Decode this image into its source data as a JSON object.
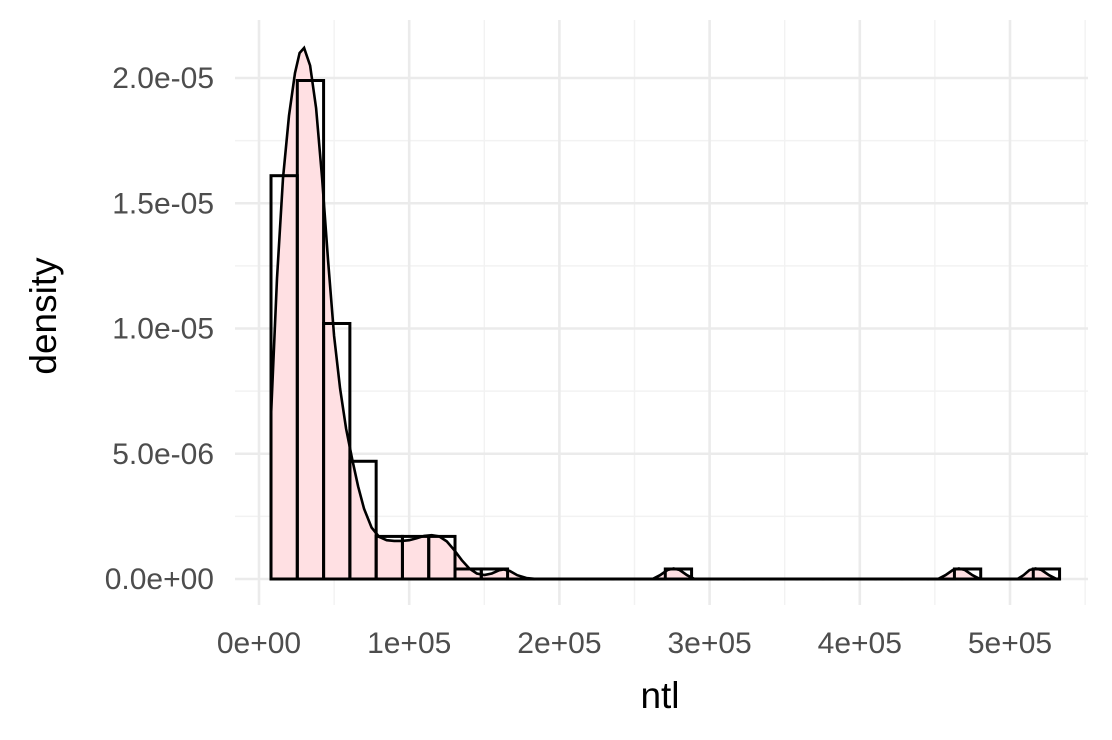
{
  "chart_data": {
    "type": "histogram",
    "xlabel": "ntl",
    "ylabel": "density",
    "title": "",
    "xlim": [
      -5000,
      545000
    ],
    "ylim": [
      -1e-06,
      2.2e-05
    ],
    "x_ticks": [
      0,
      100000,
      200000,
      300000,
      400000,
      500000
    ],
    "x_tick_labels": [
      "0e+00",
      "1e+05",
      "2e+05",
      "3e+05",
      "4e+05",
      "5e+05"
    ],
    "y_ticks": [
      0,
      5e-06,
      1e-05,
      1.5e-05,
      2e-05
    ],
    "y_tick_labels": [
      "0.0e+00",
      "5.0e-06",
      "1.0e-05",
      "1.5e-05",
      "2.0e-05"
    ],
    "grid": true,
    "histogram": {
      "bin_width": 17500,
      "bins": [
        {
          "x0": 8000,
          "x1": 25500,
          "density": 1.61e-05
        },
        {
          "x0": 25500,
          "x1": 43000,
          "density": 1.99e-05
        },
        {
          "x0": 43000,
          "x1": 60500,
          "density": 1.02e-05
        },
        {
          "x0": 60500,
          "x1": 78000,
          "density": 4.7e-06
        },
        {
          "x0": 78000,
          "x1": 95500,
          "density": 1.7e-06
        },
        {
          "x0": 95500,
          "x1": 113000,
          "density": 1.7e-06
        },
        {
          "x0": 113000,
          "x1": 130500,
          "density": 1.7e-06
        },
        {
          "x0": 130500,
          "x1": 148000,
          "density": 4e-07
        },
        {
          "x0": 148000,
          "x1": 165500,
          "density": 4e-07
        },
        {
          "x0": 165500,
          "x1": 183000,
          "density": 0
        },
        {
          "x0": 183000,
          "x1": 200500,
          "density": 0
        },
        {
          "x0": 200500,
          "x1": 218000,
          "density": 0
        },
        {
          "x0": 218000,
          "x1": 235500,
          "density": 0
        },
        {
          "x0": 235500,
          "x1": 253000,
          "density": 0
        },
        {
          "x0": 253000,
          "x1": 270500,
          "density": 0
        },
        {
          "x0": 270500,
          "x1": 288000,
          "density": 4e-07
        },
        {
          "x0": 288000,
          "x1": 305500,
          "density": 0
        },
        {
          "x0": 305500,
          "x1": 323000,
          "density": 0
        },
        {
          "x0": 323000,
          "x1": 340500,
          "density": 0
        },
        {
          "x0": 340500,
          "x1": 358000,
          "density": 0
        },
        {
          "x0": 358000,
          "x1": 375500,
          "density": 0
        },
        {
          "x0": 375500,
          "x1": 393000,
          "density": 0
        },
        {
          "x0": 393000,
          "x1": 410500,
          "density": 0
        },
        {
          "x0": 410500,
          "x1": 428000,
          "density": 0
        },
        {
          "x0": 428000,
          "x1": 445500,
          "density": 0
        },
        {
          "x0": 445500,
          "x1": 463000,
          "density": 0
        },
        {
          "x0": 463000,
          "x1": 480500,
          "density": 4e-07
        },
        {
          "x0": 480500,
          "x1": 498000,
          "density": 0
        },
        {
          "x0": 498000,
          "x1": 515500,
          "density": 0
        },
        {
          "x0": 515500,
          "x1": 533000,
          "density": 4e-07
        }
      ]
    },
    "density_curve": {
      "fill_color": "#ffe0e3",
      "line_color": "#000000",
      "points": [
        [
          8000,
          6.5e-06
        ],
        [
          12000,
          1.2e-05
        ],
        [
          16000,
          1.6e-05
        ],
        [
          20000,
          1.85e-05
        ],
        [
          24000,
          2.02e-05
        ],
        [
          27000,
          2.1e-05
        ],
        [
          30000,
          2.12e-05
        ],
        [
          34000,
          2.05e-05
        ],
        [
          38000,
          1.88e-05
        ],
        [
          42000,
          1.6e-05
        ],
        [
          46000,
          1.27e-05
        ],
        [
          50000,
          9.7e-06
        ],
        [
          54000,
          7.6e-06
        ],
        [
          58000,
          6e-06
        ],
        [
          62000,
          4.8e-06
        ],
        [
          66000,
          3.7e-06
        ],
        [
          70000,
          2.8e-06
        ],
        [
          75000,
          2.05e-06
        ],
        [
          80000,
          1.68e-06
        ],
        [
          85000,
          1.55e-06
        ],
        [
          90000,
          1.52e-06
        ],
        [
          95000,
          1.52e-06
        ],
        [
          100000,
          1.55e-06
        ],
        [
          105000,
          1.63e-06
        ],
        [
          110000,
          1.72e-06
        ],
        [
          115000,
          1.75e-06
        ],
        [
          120000,
          1.7e-06
        ],
        [
          125000,
          1.5e-06
        ],
        [
          130000,
          1.15e-06
        ],
        [
          135000,
          7.5e-07
        ],
        [
          140000,
          4.2e-07
        ],
        [
          145000,
          2.2e-07
        ],
        [
          150000,
          1.6e-07
        ],
        [
          155000,
          2.2e-07
        ],
        [
          160000,
          3.5e-07
        ],
        [
          163000,
          3.8e-07
        ],
        [
          167000,
          3.2e-07
        ],
        [
          172000,
          1.5e-07
        ],
        [
          178000,
          4e-08
        ],
        [
          185000,
          0
        ],
        [
          262000,
          0
        ],
        [
          267000,
          1.5e-07
        ],
        [
          272000,
          3.6e-07
        ],
        [
          276000,
          4.2e-07
        ],
        [
          280000,
          3.6e-07
        ],
        [
          285000,
          1.5e-07
        ],
        [
          290000,
          0
        ],
        [
          452000,
          0
        ],
        [
          457000,
          1.5e-07
        ],
        [
          462000,
          3.6e-07
        ],
        [
          466000,
          4.2e-07
        ],
        [
          470000,
          3.6e-07
        ],
        [
          475000,
          1.5e-07
        ],
        [
          480000,
          0
        ],
        [
          505000,
          0
        ],
        [
          509000,
          1.5e-07
        ],
        [
          513000,
          3.6e-07
        ],
        [
          517000,
          4.2e-07
        ],
        [
          521000,
          3.6e-07
        ],
        [
          526000,
          1.5e-07
        ],
        [
          531000,
          0
        ]
      ]
    }
  }
}
